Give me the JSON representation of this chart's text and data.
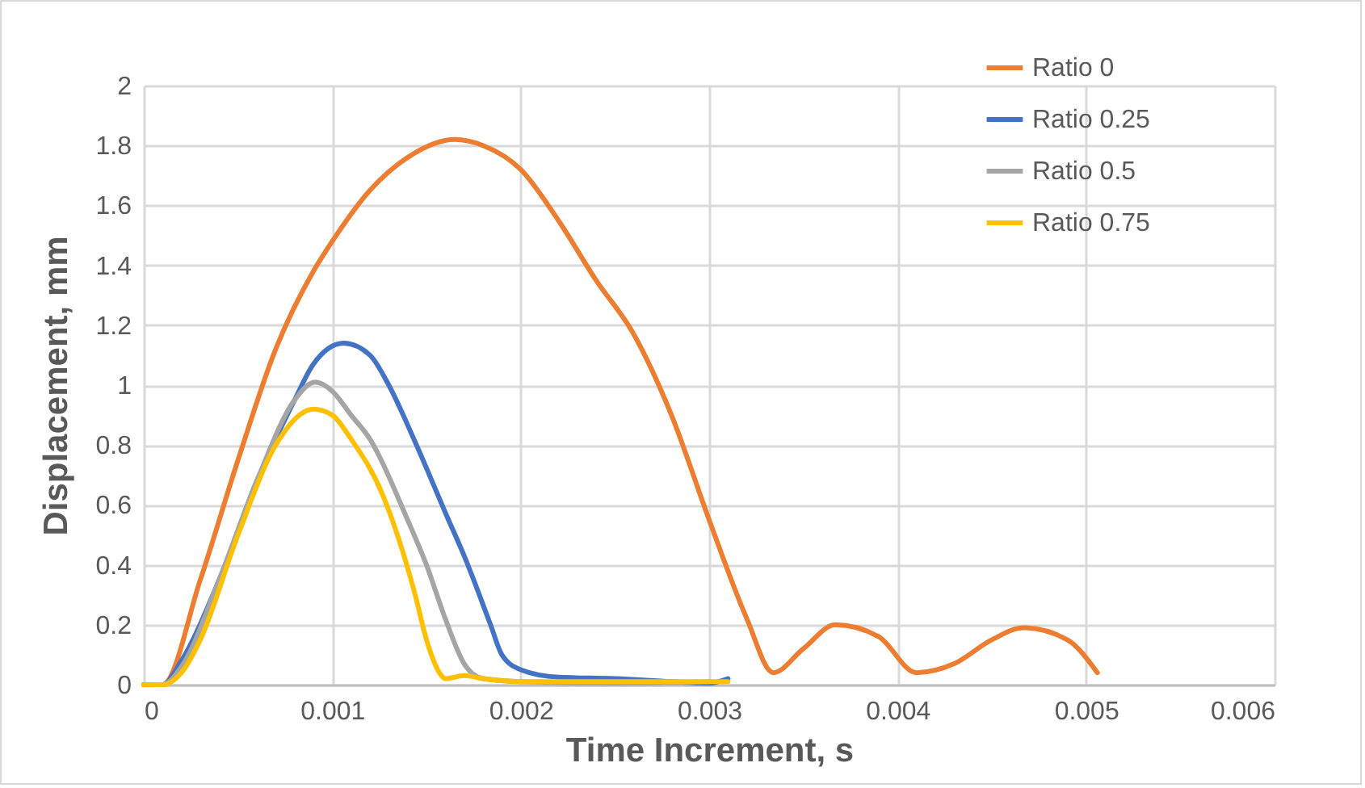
{
  "chart_data": {
    "type": "line",
    "xlabel": "Time Increment, s",
    "ylabel": "Displacement, mm",
    "xlim": [
      0,
      0.006
    ],
    "ylim": [
      0,
      2
    ],
    "xticks": [
      0,
      0.001,
      0.002,
      0.003,
      0.004,
      0.005,
      0.006
    ],
    "yticks": [
      0,
      0.2,
      0.4,
      0.6,
      0.8,
      1,
      1.2,
      1.4,
      1.6,
      1.8,
      2
    ],
    "grid": true,
    "legend": "top right",
    "marker": "none",
    "line_style": "solid",
    "series": [
      {
        "name": "Ratio 0",
        "color": "#ed7d31",
        "x": [
          0,
          0.0001,
          0.0003,
          0.0005,
          0.0007,
          0.0009,
          0.001,
          0.0012,
          0.0014,
          0.00165,
          0.0018,
          0.002,
          0.0022,
          0.0024,
          0.0026,
          0.0028,
          0.003,
          0.0032,
          0.00334,
          0.0035,
          0.00367,
          0.0039,
          0.0041,
          0.0043,
          0.0045,
          0.00467,
          0.0049,
          0.00506
        ],
        "values": [
          0,
          0,
          0.35,
          0.75,
          1.12,
          1.38,
          1.48,
          1.65,
          1.76,
          1.82,
          1.8,
          1.72,
          1.55,
          1.35,
          1.17,
          0.9,
          0.55,
          0.22,
          0.04,
          0.12,
          0.2,
          0.16,
          0.04,
          0.07,
          0.15,
          0.19,
          0.15,
          0.04
        ]
      },
      {
        "name": "Ratio 0.25",
        "color": "#4472c4",
        "x": [
          0,
          0.0001,
          0.0002,
          0.0004,
          0.0006,
          0.0008,
          0.0009,
          0.00106,
          0.0012,
          0.0013,
          0.00144,
          0.00161,
          0.0017,
          0.00184,
          0.0019,
          0.002,
          0.0022,
          0.0025,
          0.0028,
          0.003,
          0.0031
        ],
        "values": [
          0,
          0,
          0.08,
          0.35,
          0.68,
          0.95,
          1.07,
          1.14,
          1.1,
          1,
          0.81,
          0.56,
          0.43,
          0.2,
          0.1,
          0.05,
          0.025,
          0.02,
          0.01,
          0.005,
          0.02
        ]
      },
      {
        "name": "Ratio 0.5",
        "color": "#a5a5a5",
        "x": [
          0,
          0.0001,
          0.0002,
          0.0004,
          0.0006,
          0.0008,
          0.00091,
          0.001,
          0.0011,
          0.0012,
          0.0014,
          0.0015,
          0.0016,
          0.0017,
          0.0018,
          0.002,
          0.0025,
          0.003
        ],
        "values": [
          0,
          0,
          0.06,
          0.35,
          0.68,
          0.95,
          1.01,
          0.98,
          0.9,
          0.82,
          0.55,
          0.4,
          0.22,
          0.07,
          0.02,
          0.01,
          0.005,
          0.01
        ]
      },
      {
        "name": "Ratio 0.75",
        "color": "#ffc000",
        "x": [
          0,
          0.0001,
          0.0002,
          0.0003,
          0.0005,
          0.0007,
          0.0009,
          0.001,
          0.0011,
          0.00127,
          0.00144,
          0.0015,
          0.00158,
          0.0016,
          0.0017,
          0.0018,
          0.002,
          0.0025,
          0.003,
          0.0031
        ],
        "values": [
          0,
          0,
          0.04,
          0.15,
          0.5,
          0.8,
          0.92,
          0.9,
          0.82,
          0.63,
          0.3,
          0.15,
          0.03,
          0.02,
          0.03,
          0.02,
          0.01,
          0.01,
          0.01,
          0.01
        ]
      }
    ]
  }
}
